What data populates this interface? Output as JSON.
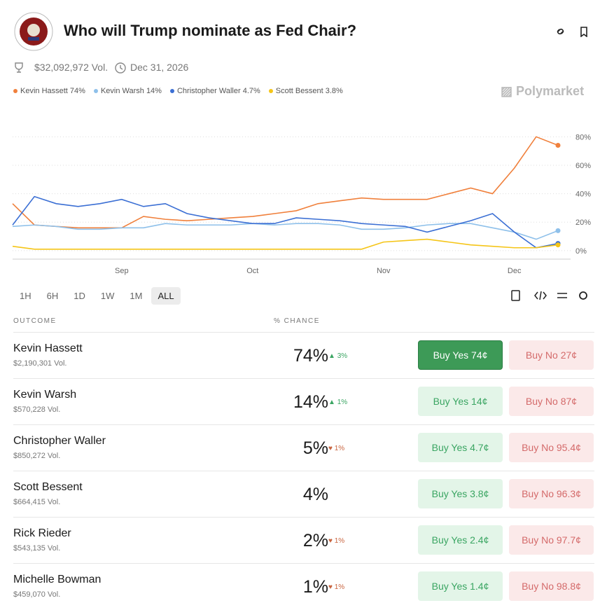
{
  "header": {
    "title": "Who will Trump nominate as Fed Chair?",
    "volume": "$32,092,972 Vol.",
    "end_date": "Dec 31, 2026",
    "brand": "Polymarket"
  },
  "chart": {
    "type": "line",
    "categories": [
      null,
      null,
      null,
      null,
      null,
      "Sep",
      null,
      null,
      null,
      null,
      null,
      "Oct",
      null,
      null,
      null,
      null,
      null,
      "Nov",
      null,
      null,
      null,
      null,
      null,
      "Dec",
      null,
      null
    ],
    "series": [
      {
        "name": "Kevin Hassett 74%",
        "color": "#f0803c",
        "values": [
          33,
          18,
          17,
          16,
          16,
          16,
          24,
          22,
          21,
          22,
          23,
          24,
          26,
          28,
          33,
          35,
          37,
          36,
          36,
          36,
          40,
          44,
          40,
          58,
          80,
          74
        ]
      },
      {
        "name": "Kevin Warsh 14%",
        "color": "#8ec0ea",
        "values": [
          17,
          18,
          17,
          15,
          15,
          16,
          16,
          19,
          18,
          18,
          18,
          19,
          18,
          19,
          19,
          18,
          15,
          15,
          16,
          18,
          19,
          19,
          16,
          13,
          8,
          14
        ]
      },
      {
        "name": "Christopher Waller 4.7%",
        "color": "#3b6fd4",
        "values": [
          18,
          38,
          33,
          31,
          33,
          36,
          31,
          33,
          26,
          23,
          21,
          19,
          19,
          23,
          22,
          21,
          19,
          18,
          17,
          13,
          17,
          21,
          26,
          13,
          2,
          5
        ]
      },
      {
        "name": "Scott Bessent 3.8%",
        "color": "#f5c518",
        "values": [
          3,
          1,
          1,
          1,
          1,
          1,
          1,
          1,
          1,
          1,
          1,
          1,
          1,
          1,
          1,
          1,
          1,
          6,
          7,
          8,
          6,
          4,
          3,
          2,
          2,
          4
        ]
      }
    ],
    "ylim": [
      -6,
      90
    ],
    "yticks": [
      {
        "value": 0,
        "label": "0%"
      },
      {
        "value": 20,
        "label": "20%"
      },
      {
        "value": 40,
        "label": "40%"
      },
      {
        "value": 60,
        "label": "60%"
      },
      {
        "value": 80,
        "label": "80%"
      }
    ],
    "grid": true
  },
  "ranges": [
    "1H",
    "6H",
    "1D",
    "1W",
    "1M",
    "ALL"
  ],
  "table": {
    "headers": [
      "OUTCOME",
      "% CHANCE"
    ],
    "rows": [
      {
        "name": "Kevin Hassett",
        "volume": "$2,190,301 Vol.",
        "chance": "74%",
        "change": "3%",
        "direction": "up",
        "yes": "Buy Yes 74¢",
        "no": "Buy No 27¢"
      },
      {
        "name": "Kevin Warsh",
        "volume": "$570,228 Vol.",
        "chance": "14%",
        "change": "1%",
        "direction": "up",
        "yes": "Buy Yes 14¢",
        "no": "Buy No 87¢"
      },
      {
        "name": "Christopher Waller",
        "volume": "$850,272 Vol.",
        "chance": "5%",
        "change": "1%",
        "direction": "down",
        "yes": "Buy Yes 4.7¢",
        "no": "Buy No 95.4¢"
      },
      {
        "name": "Scott Bessent",
        "volume": "$664,415 Vol.",
        "chance": "4%",
        "yes": "Buy Yes 3.8¢",
        "no": "Buy No 96.3¢"
      },
      {
        "name": "Rick Rieder",
        "volume": "$543,135 Vol.",
        "chance": "2%",
        "change": "1%",
        "direction": "down",
        "yes": "Buy Yes 2.4¢",
        "no": "Buy No 97.7¢"
      },
      {
        "name": "Michelle Bowman",
        "volume": "$459,070 Vol.",
        "chance": "1%",
        "change": "1%",
        "direction": "down",
        "yes": "Buy Yes 1.4¢",
        "no": "Buy No 98.8¢"
      }
    ]
  }
}
